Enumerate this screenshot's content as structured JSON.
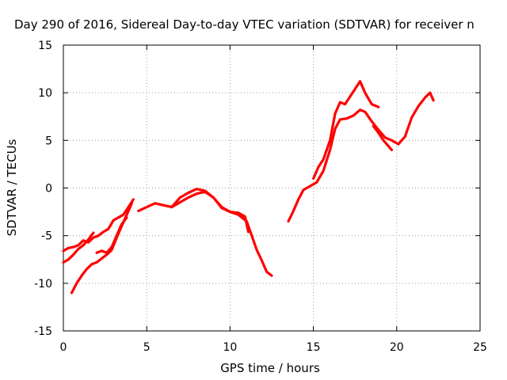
{
  "chart_data": {
    "type": "line",
    "title": "Day 290 of 2016, Sidereal Day-to-day VTEC variation (SDTVAR) for receiver n",
    "xlabel": "GPS time / hours",
    "ylabel": "SDTVAR / TECUs",
    "xlim": [
      0,
      25
    ],
    "ylim": [
      -15,
      15
    ],
    "xticks": [
      0,
      5,
      10,
      15,
      20,
      25
    ],
    "yticks": [
      -15,
      -10,
      -5,
      0,
      5,
      10,
      15
    ],
    "xtick_labels": [
      "0",
      "5",
      "10",
      "15",
      "20",
      "25"
    ],
    "ytick_labels": [
      "-15",
      "-10",
      "-5",
      "0",
      "5",
      "10",
      "15"
    ],
    "grid": true,
    "colors": {
      "series": "#ff0000",
      "grid": "#a0a0a0",
      "frame": "#000000"
    },
    "series": [
      {
        "x": [
          0.0,
          0.3,
          0.6,
          0.9,
          1.2,
          1.5,
          1.8,
          2.1,
          2.4,
          2.7,
          3.0,
          3.3,
          3.6,
          3.9,
          4.2
        ],
        "y": [
          -6.6,
          -6.3,
          -6.2,
          -6.0,
          -5.5,
          -5.7,
          -5.2,
          -5.0,
          -4.6,
          -4.3,
          -3.4,
          -3.1,
          -2.8,
          -2.0,
          -1.2
        ]
      },
      {
        "x": [
          0.0,
          0.3,
          0.6,
          0.9,
          1.2,
          1.5,
          1.8
        ],
        "y": [
          -7.8,
          -7.5,
          -7.0,
          -6.4,
          -6.0,
          -5.4,
          -4.7
        ]
      },
      {
        "x": [
          0.5,
          0.8,
          1.1,
          1.4,
          1.7,
          2.0,
          2.3,
          2.6,
          2.9,
          3.2,
          3.5,
          3.8,
          4.1
        ],
        "y": [
          -11.0,
          -10.0,
          -9.2,
          -8.5,
          -8.0,
          -7.8,
          -7.4,
          -7.0,
          -6.5,
          -5.2,
          -4.0,
          -2.8,
          -1.6
        ]
      },
      {
        "x": [
          2.0,
          2.3,
          2.6,
          2.9,
          3.2,
          3.5,
          3.8
        ],
        "y": [
          -6.8,
          -6.6,
          -6.8,
          -6.2,
          -5.0,
          -3.8,
          -3.1
        ]
      },
      {
        "x": [
          4.5,
          5.0,
          5.5,
          6.0,
          6.5,
          7.0,
          7.5,
          8.0,
          8.5,
          9.0,
          9.5,
          10.0,
          10.5,
          11.0,
          11.3,
          11.6,
          11.9,
          12.2,
          12.5
        ],
        "y": [
          -2.4,
          -2.0,
          -1.6,
          -1.8,
          -2.0,
          -1.5,
          -1.0,
          -0.6,
          -0.4,
          -1.0,
          -2.0,
          -2.5,
          -2.8,
          -3.5,
          -5.0,
          -6.5,
          -7.6,
          -8.8,
          -9.2
        ]
      },
      {
        "x": [
          6.5,
          7.0,
          7.5,
          8.0,
          8.5,
          9.0,
          9.5,
          10.0,
          10.5,
          10.9,
          11.1
        ],
        "y": [
          -2.0,
          -1.0,
          -0.5,
          -0.1,
          -0.3,
          -1.0,
          -2.1,
          -2.5,
          -2.6,
          -3.0,
          -4.6
        ]
      },
      {
        "x": [
          13.5,
          13.8,
          14.1,
          14.4,
          14.8,
          15.2,
          15.6,
          16.0,
          16.3,
          16.6,
          17.0,
          17.4,
          17.8,
          18.1,
          18.5,
          18.9,
          19.3,
          19.7,
          20.1,
          20.5,
          20.9,
          21.3,
          21.7,
          22.0,
          22.2
        ],
        "y": [
          -3.5,
          -2.4,
          -1.2,
          -0.2,
          0.2,
          0.6,
          1.8,
          4.0,
          6.2,
          7.2,
          7.3,
          7.6,
          8.2,
          8.0,
          7.0,
          6.1,
          5.3,
          5.0,
          4.6,
          5.4,
          7.4,
          8.6,
          9.5,
          10.0,
          9.2
        ]
      },
      {
        "x": [
          15.0,
          15.3,
          15.6,
          16.0,
          16.3,
          16.6,
          16.9,
          17.2,
          17.5,
          17.8,
          18.1,
          18.5,
          18.9
        ],
        "y": [
          1.0,
          2.2,
          3.0,
          5.0,
          7.8,
          9.0,
          8.8,
          9.6,
          10.4,
          11.2,
          10.0,
          8.8,
          8.5
        ]
      },
      {
        "x": [
          18.6,
          18.9,
          19.2,
          19.5,
          19.7
        ],
        "y": [
          6.5,
          5.8,
          5.0,
          4.4,
          4.0
        ]
      }
    ]
  }
}
